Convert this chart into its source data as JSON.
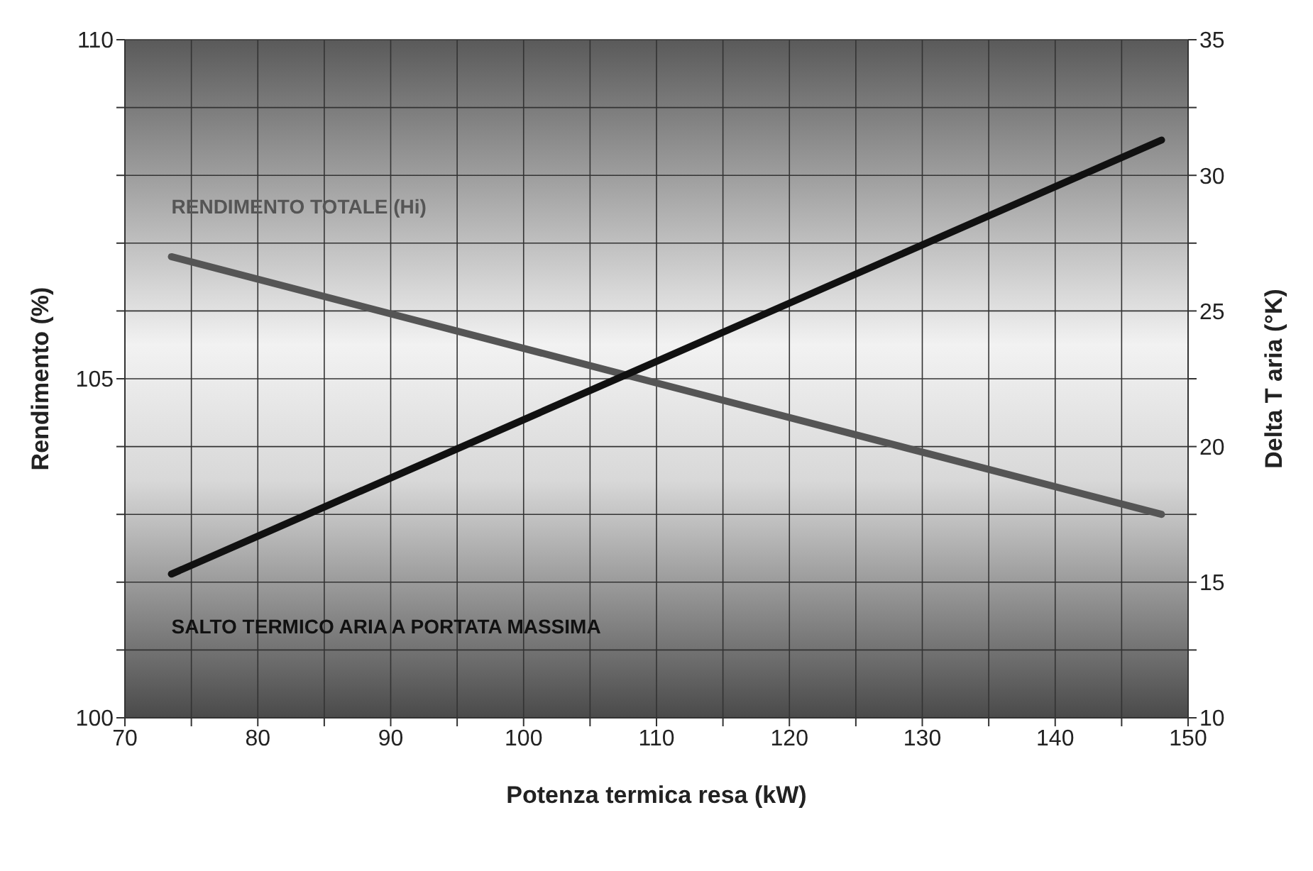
{
  "chart_data": {
    "type": "line",
    "xlabel": "Potenza termica resa (kW)",
    "ylabel": "Rendimento (%)",
    "y2label": "Delta T aria (°K)",
    "series": [
      {
        "name": "RENDIMENTO TOTALE (Hi)",
        "color": "#555555",
        "values": [
          106.8,
          103.0
        ]
      },
      {
        "name": "SALTO TERMICO ARIA A PORTATA MASSIMA",
        "color": "#111111",
        "axis": "y2",
        "values": [
          15.3,
          31.3
        ]
      }
    ],
    "x": [
      73.5,
      148
    ],
    "xlim": [
      70,
      150
    ],
    "xticks": [
      70,
      {
        "value": 75,
        "label": null
      },
      80,
      {
        "value": 85,
        "label": null
      },
      90,
      {
        "value": 95,
        "label": null
      },
      100,
      {
        "value": 105,
        "label": null
      },
      110,
      {
        "value": 115,
        "label": null
      },
      120,
      {
        "value": 125,
        "label": null
      },
      130,
      {
        "value": 135,
        "label": null
      },
      140,
      {
        "value": 145,
        "label": null
      },
      150
    ],
    "ylim": [
      100,
      110
    ],
    "yticks": [
      100,
      {
        "value": 101,
        "label": null
      },
      {
        "value": 102,
        "label": null
      },
      {
        "value": 103,
        "label": null
      },
      {
        "value": 104,
        "label": null
      },
      105,
      {
        "value": 106,
        "label": null
      },
      {
        "value": 107,
        "label": null
      },
      {
        "value": 108,
        "label": null
      },
      {
        "value": 109,
        "label": null
      },
      110
    ],
    "y2lim": [
      10,
      35
    ],
    "y2ticks": [
      10,
      {
        "value": 12.5,
        "label": null
      },
      15,
      {
        "value": 17.5,
        "label": null
      },
      20,
      {
        "value": 22.5,
        "label": null
      },
      25,
      {
        "value": 27.5,
        "label": null
      },
      30,
      {
        "value": 32.5,
        "label": null
      },
      35
    ],
    "grid": true,
    "marker": "none",
    "line_style": "solid"
  }
}
